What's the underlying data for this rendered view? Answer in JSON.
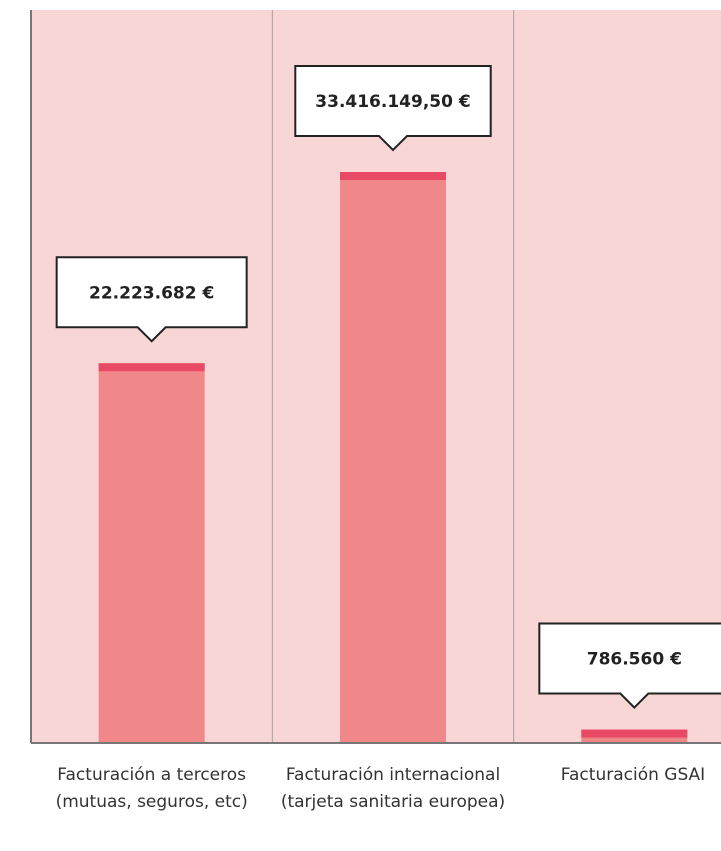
{
  "chart_data": {
    "type": "bar",
    "categories": [
      "Facturación a terceros (mutuas, seguros, etc)",
      "Facturación internacional (tarjeta sanitaria europea)",
      "Facturación GSAI"
    ],
    "values": [
      22223682,
      33416149.5,
      786560
    ],
    "value_labels": [
      "22.223.682 €",
      "33.416.149,50 €",
      "786.560 €"
    ],
    "color": "#f08789"
  }
}
